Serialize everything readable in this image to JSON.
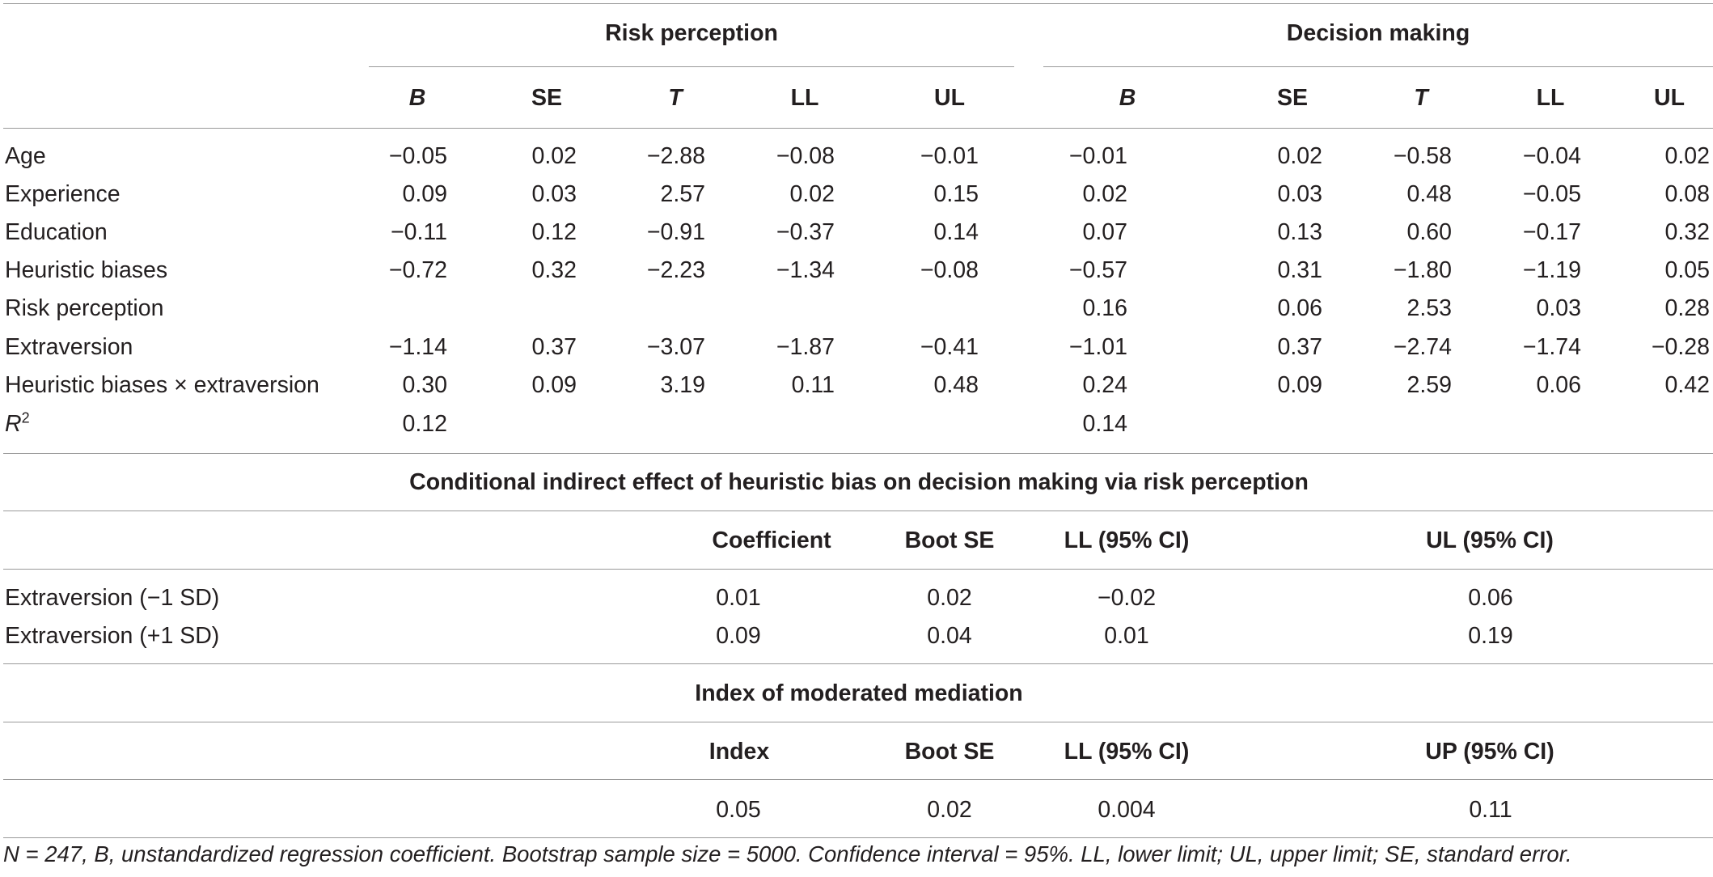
{
  "main_table": {
    "group_headers": [
      "Risk perception",
      "Decision making"
    ],
    "columns": [
      "B",
      "SE",
      "T",
      "LL",
      "UL",
      "B",
      "SE",
      "T",
      "LL",
      "UL"
    ],
    "rows": [
      {
        "label": "Age",
        "values": [
          "−0.05",
          "0.02",
          "−2.88",
          "−0.08",
          "−0.01",
          "−0.01",
          "0.02",
          "−0.58",
          "−0.04",
          "0.02"
        ]
      },
      {
        "label": "Experience",
        "values": [
          "0.09",
          "0.03",
          "2.57",
          "0.02",
          "0.15",
          "0.02",
          "0.03",
          "0.48",
          "−0.05",
          "0.08"
        ]
      },
      {
        "label": "Education",
        "values": [
          "−0.11",
          "0.12",
          "−0.91",
          "−0.37",
          "0.14",
          "0.07",
          "0.13",
          "0.60",
          "−0.17",
          "0.32"
        ]
      },
      {
        "label": "Heuristic biases",
        "values": [
          "−0.72",
          "0.32",
          "−2.23",
          "−1.34",
          "−0.08",
          "−0.57",
          "0.31",
          "−1.80",
          "−1.19",
          "0.05"
        ]
      },
      {
        "label": "Risk perception",
        "values": [
          "",
          "",
          "",
          "",
          "",
          "0.16",
          "0.06",
          "2.53",
          "0.03",
          "0.28"
        ]
      },
      {
        "label": "Extraversion",
        "values": [
          "−1.14",
          "0.37",
          "−3.07",
          "−1.87",
          "−0.41",
          "−1.01",
          "0.37",
          "−2.74",
          "−1.74",
          "−0.28"
        ]
      },
      {
        "label": "Heuristic biases × extraversion",
        "values": [
          "0.30",
          "0.09",
          "3.19",
          "0.11",
          "0.48",
          "0.24",
          "0.09",
          "2.59",
          "0.06",
          "0.42"
        ]
      }
    ],
    "r2": {
      "label_main": "R",
      "label_sup": "2",
      "values": [
        "0.12",
        "0.14"
      ]
    }
  },
  "conditional": {
    "title": "Conditional indirect effect of heuristic bias on decision making via risk perception",
    "columns": [
      "Coefficient",
      "Boot SE",
      "LL (95% CI)",
      "UL (95% CI)"
    ],
    "rows": [
      {
        "label": "Extraversion (−1 SD)",
        "values": [
          "0.01",
          "0.02",
          "−0.02",
          "0.06"
        ]
      },
      {
        "label": "Extraversion (+1 SD)",
        "values": [
          "0.09",
          "0.04",
          "0.01",
          "0.19"
        ]
      }
    ]
  },
  "index": {
    "title": "Index of moderated mediation",
    "columns": [
      "Index",
      "Boot SE",
      "LL (95% CI)",
      "UP (95% CI)"
    ],
    "values": [
      "0.05",
      "0.02",
      "0.004",
      "0.11"
    ]
  },
  "footnote": "N = 247, B, unstandardized regression coefficient. Bootstrap sample size = 5000. Confidence interval = 95%. LL, lower limit; UL, upper limit; SE, standard error."
}
